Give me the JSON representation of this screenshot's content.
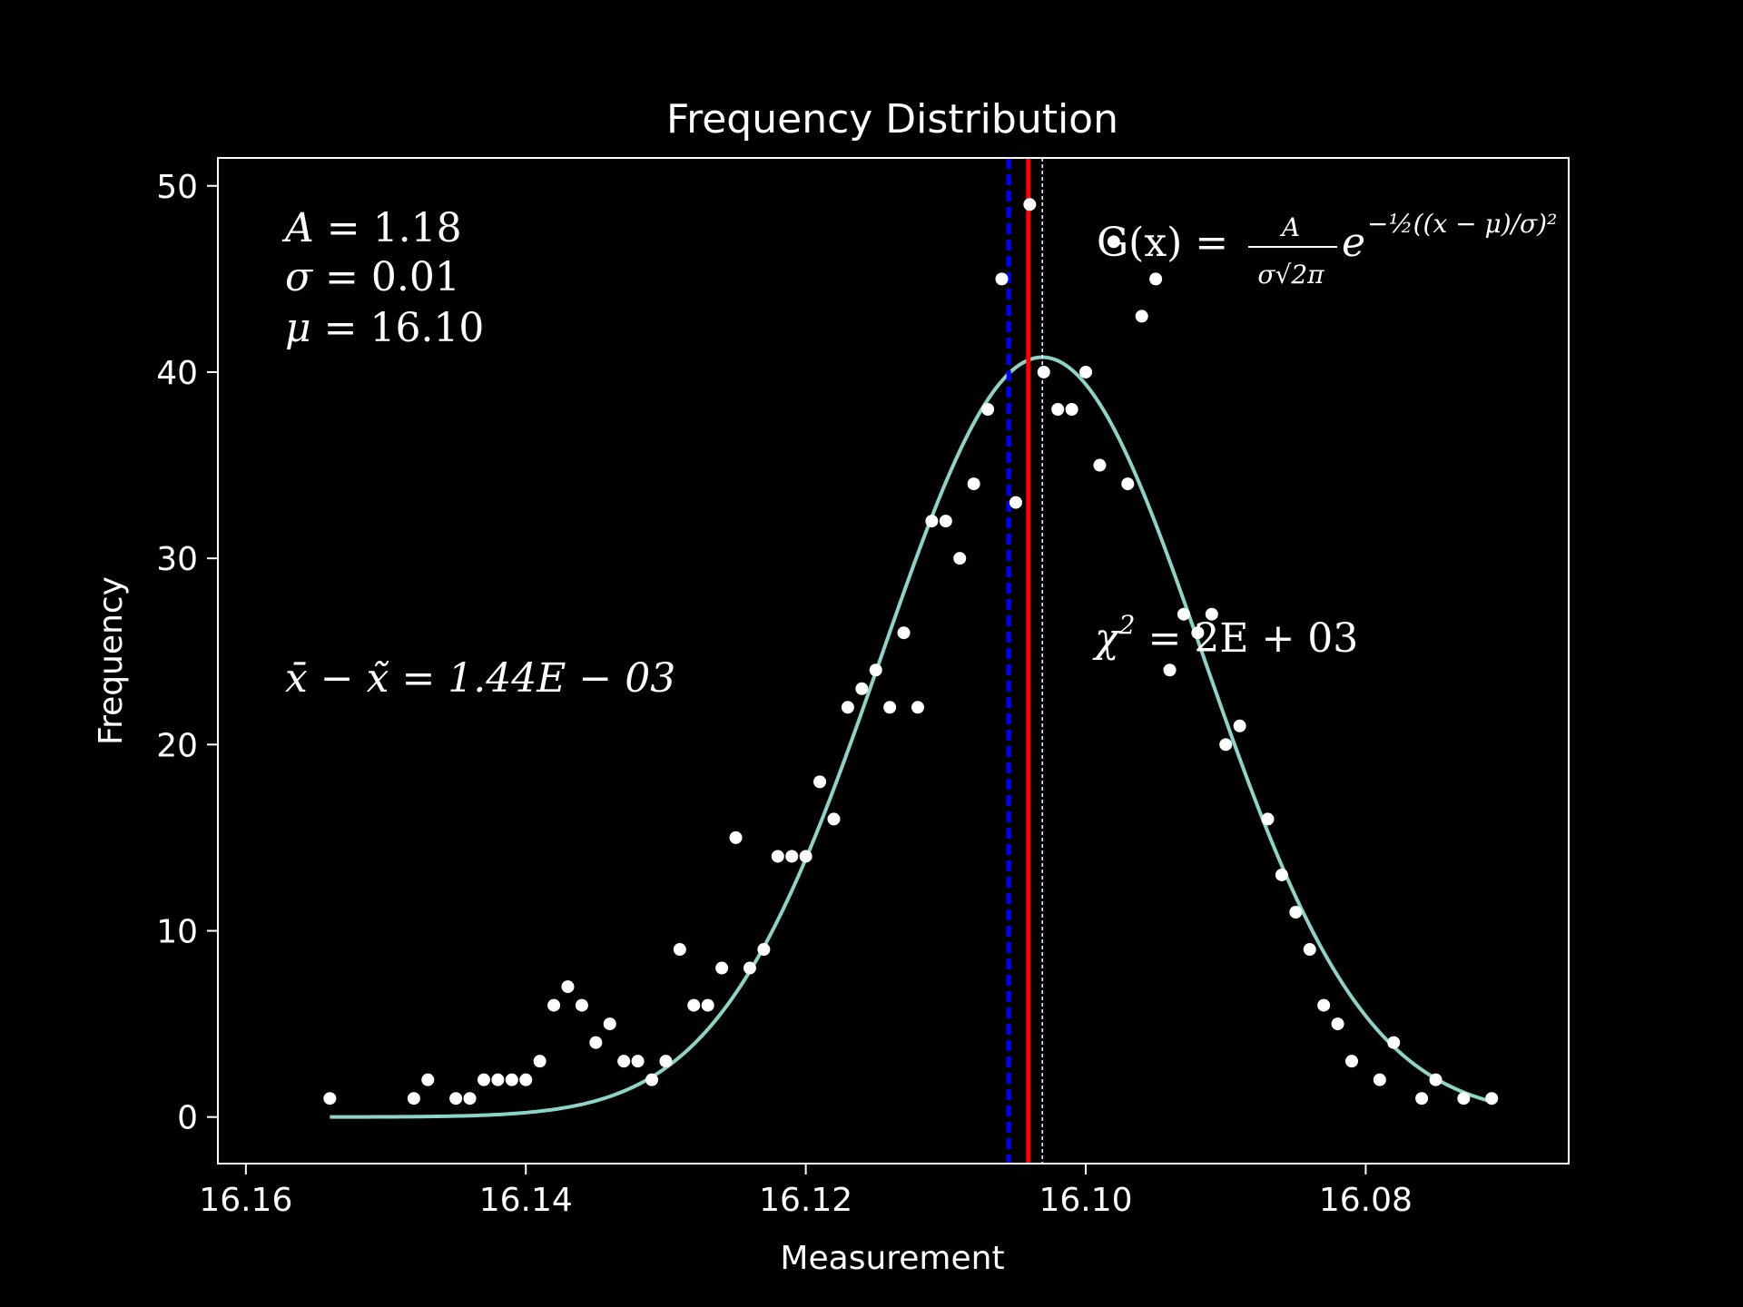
{
  "chart_data": {
    "type": "scatter",
    "title": "Frequency Distribution",
    "xlabel": "Measurement",
    "ylabel": "Frequency",
    "xlim": [
      16.162,
      16.0655
    ],
    "ylim": [
      -2.5,
      51.5
    ],
    "x_inverted": true,
    "xticks": [
      16.16,
      16.14,
      16.12,
      16.1,
      16.08
    ],
    "xtick_labels": [
      "16.16",
      "16.14",
      "16.12",
      "16.10",
      "16.08"
    ],
    "yticks": [
      0,
      10,
      20,
      30,
      40,
      50
    ],
    "ytick_labels": [
      "0",
      "10",
      "20",
      "30",
      "40",
      "50"
    ],
    "grid": false,
    "colors": {
      "background": "#000000",
      "points": "#ffffff",
      "fit": "#8dd3c7",
      "mean_line": "#0000ff",
      "median_line": "#ff0000",
      "mu_line": "#ffffff"
    },
    "vlines": [
      {
        "x": 16.1055,
        "style": "dashed",
        "color": "#0000ff"
      },
      {
        "x": 16.1041,
        "style": "solid",
        "color": "#ff0000"
      },
      {
        "x": 16.1031,
        "style": "dotted",
        "color": "#ffffff"
      }
    ],
    "fit": {
      "A": 1.18,
      "sigma": 0.01,
      "mu": 16.1031,
      "peak": 40.8,
      "sigma_fit": 0.0115,
      "x_start": 16.154,
      "x_end": 16.071
    },
    "points": [
      {
        "x": 16.154,
        "y": 1
      },
      {
        "x": 16.148,
        "y": 1
      },
      {
        "x": 16.147,
        "y": 2
      },
      {
        "x": 16.145,
        "y": 1
      },
      {
        "x": 16.144,
        "y": 1
      },
      {
        "x": 16.143,
        "y": 2
      },
      {
        "x": 16.142,
        "y": 2
      },
      {
        "x": 16.141,
        "y": 2
      },
      {
        "x": 16.14,
        "y": 2
      },
      {
        "x": 16.139,
        "y": 3
      },
      {
        "x": 16.138,
        "y": 6
      },
      {
        "x": 16.137,
        "y": 7
      },
      {
        "x": 16.136,
        "y": 6
      },
      {
        "x": 16.135,
        "y": 4
      },
      {
        "x": 16.134,
        "y": 5
      },
      {
        "x": 16.133,
        "y": 3
      },
      {
        "x": 16.132,
        "y": 3
      },
      {
        "x": 16.131,
        "y": 2
      },
      {
        "x": 16.13,
        "y": 3
      },
      {
        "x": 16.129,
        "y": 9
      },
      {
        "x": 16.128,
        "y": 6
      },
      {
        "x": 16.127,
        "y": 6
      },
      {
        "x": 16.126,
        "y": 8
      },
      {
        "x": 16.125,
        "y": 15
      },
      {
        "x": 16.124,
        "y": 8
      },
      {
        "x": 16.123,
        "y": 9
      },
      {
        "x": 16.122,
        "y": 14
      },
      {
        "x": 16.121,
        "y": 14
      },
      {
        "x": 16.12,
        "y": 14
      },
      {
        "x": 16.119,
        "y": 18
      },
      {
        "x": 16.118,
        "y": 16
      },
      {
        "x": 16.117,
        "y": 22
      },
      {
        "x": 16.116,
        "y": 23
      },
      {
        "x": 16.115,
        "y": 24
      },
      {
        "x": 16.114,
        "y": 22
      },
      {
        "x": 16.113,
        "y": 26
      },
      {
        "x": 16.112,
        "y": 22
      },
      {
        "x": 16.111,
        "y": 32
      },
      {
        "x": 16.11,
        "y": 32
      },
      {
        "x": 16.109,
        "y": 30
      },
      {
        "x": 16.108,
        "y": 34
      },
      {
        "x": 16.107,
        "y": 38
      },
      {
        "x": 16.106,
        "y": 45
      },
      {
        "x": 16.105,
        "y": 33
      },
      {
        "x": 16.104,
        "y": 49
      },
      {
        "x": 16.103,
        "y": 40
      },
      {
        "x": 16.102,
        "y": 38
      },
      {
        "x": 16.101,
        "y": 38
      },
      {
        "x": 16.1,
        "y": 40
      },
      {
        "x": 16.099,
        "y": 35
      },
      {
        "x": 16.098,
        "y": 47
      },
      {
        "x": 16.097,
        "y": 34
      },
      {
        "x": 16.096,
        "y": 43
      },
      {
        "x": 16.095,
        "y": 45
      },
      {
        "x": 16.094,
        "y": 24
      },
      {
        "x": 16.093,
        "y": 27
      },
      {
        "x": 16.092,
        "y": 26
      },
      {
        "x": 16.091,
        "y": 27
      },
      {
        "x": 16.09,
        "y": 20
      },
      {
        "x": 16.089,
        "y": 21
      },
      {
        "x": 16.087,
        "y": 16
      },
      {
        "x": 16.086,
        "y": 13
      },
      {
        "x": 16.085,
        "y": 11
      },
      {
        "x": 16.084,
        "y": 9
      },
      {
        "x": 16.083,
        "y": 6
      },
      {
        "x": 16.082,
        "y": 5
      },
      {
        "x": 16.081,
        "y": 3
      },
      {
        "x": 16.079,
        "y": 2
      },
      {
        "x": 16.078,
        "y": 4
      },
      {
        "x": 16.076,
        "y": 1
      },
      {
        "x": 16.075,
        "y": 2
      },
      {
        "x": 16.073,
        "y": 1
      },
      {
        "x": 16.071,
        "y": 1
      }
    ],
    "annotations": {
      "A_sym": "A",
      "A_val": " = 1.18",
      "sigma_sym": "σ",
      "sigma_val": " = 0.01",
      "mu_sym": "μ",
      "mu_val": " = 16.10",
      "diff": "x̄ − x̃ = 1.44E − 03",
      "chi_sym": "χ",
      "chi_exp": "2",
      "chi_val": " = 2E + 03",
      "gauss_lhs": "G(x) = ",
      "gauss_num": "A",
      "gauss_den": "σ√2π",
      "gauss_e": "e",
      "gauss_exp": "−½((x − μ)/σ)²"
    }
  }
}
